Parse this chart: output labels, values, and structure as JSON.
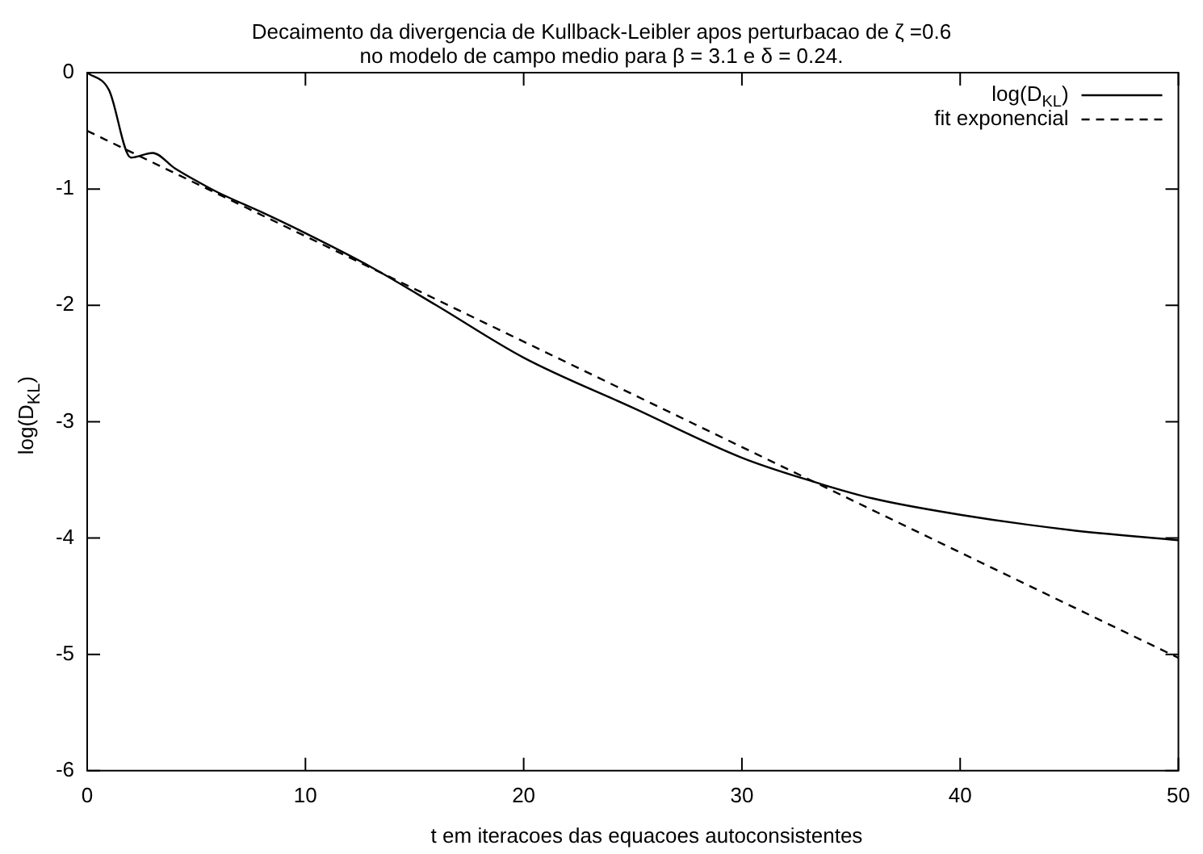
{
  "chart_data": {
    "type": "line",
    "title": "Decaimento da divergencia de Kullback-Leibler apos perturbacao de ζ =0.6",
    "subtitle": "no modelo de campo medio para β = 3.1 e δ = 0.24.",
    "xlabel": "t em iteracoes das equacoes autoconsistentes",
    "ylabel": "log(D$_{KL}$)",
    "series": [
      {
        "name": "log(D$_{KL}$)",
        "color": "#000000",
        "line_style": "solid",
        "x": [
          0,
          1,
          2,
          3,
          4,
          5,
          6,
          8,
          10,
          13,
          16,
          20,
          25,
          30,
          33,
          36,
          40,
          45,
          50
        ],
        "values": [
          0,
          -0.15,
          -0.73,
          -0.69,
          -0.82,
          -0.93,
          -1.03,
          -1.2,
          -1.38,
          -1.67,
          -2.0,
          -2.45,
          -2.88,
          -3.31,
          -3.5,
          -3.66,
          -3.8,
          -3.93,
          -4.02
        ]
      },
      {
        "name": "fit exponencial",
        "color": "#000000",
        "line_style": "dashed",
        "x": [
          0,
          50
        ],
        "values": [
          -0.5,
          -5.03
        ]
      }
    ],
    "xlim": [
      0,
      50
    ],
    "xticks": [
      0,
      10,
      20,
      30,
      40,
      50
    ],
    "ylim": [
      -6,
      0
    ],
    "yticks": [
      -6,
      -5,
      -4,
      -3,
      -2,
      -1,
      0
    ],
    "grid": false,
    "legend": "top right",
    "marker": "none"
  }
}
